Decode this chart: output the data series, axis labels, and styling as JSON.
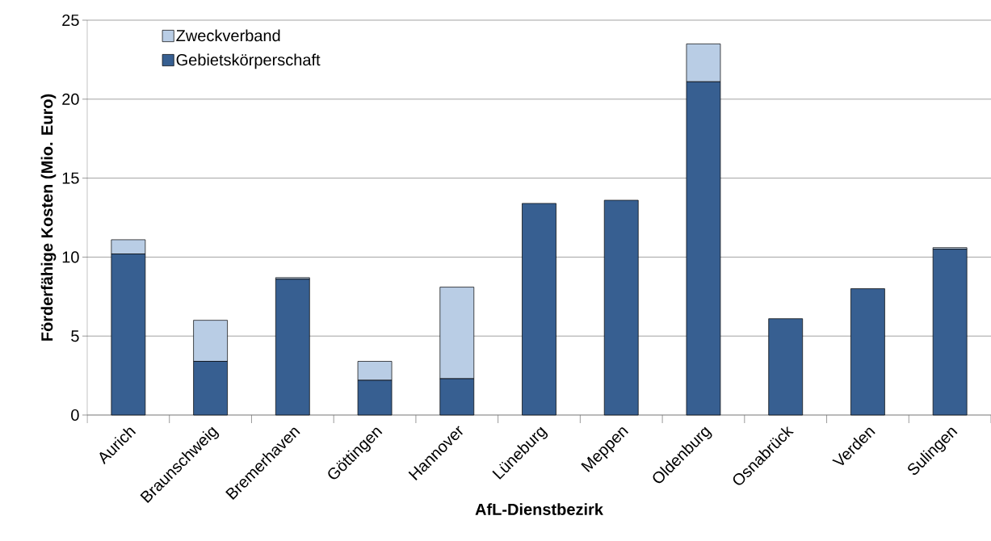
{
  "chart_data": {
    "type": "bar",
    "stacked": true,
    "xlabel": "AfL-Dienstbezirk",
    "ylabel": "Förderfähige Kosten (Mio. Euro)",
    "categories": [
      "Aurich",
      "Braunschweig",
      "Bremerhaven",
      "Göttingen",
      "Hannover",
      "Lüneburg",
      "Meppen",
      "Oldenburg",
      "Osnabrück",
      "Verden",
      "Sulingen"
    ],
    "series": [
      {
        "name": "Gebietskörperschaft",
        "color": "#375f91",
        "values": [
          10.2,
          3.4,
          8.6,
          2.2,
          2.3,
          13.4,
          13.6,
          21.1,
          6.1,
          8.0,
          10.5
        ]
      },
      {
        "name": "Zweckverband",
        "color": "#b9cde5",
        "values": [
          0.9,
          2.6,
          0.1,
          1.2,
          5.8,
          0,
          0,
          2.4,
          0,
          0,
          0.1
        ]
      }
    ],
    "ylim": [
      0,
      25
    ],
    "yticks": [
      0,
      5,
      10,
      15,
      20,
      25
    ],
    "grid": "y",
    "legend": "top left"
  }
}
